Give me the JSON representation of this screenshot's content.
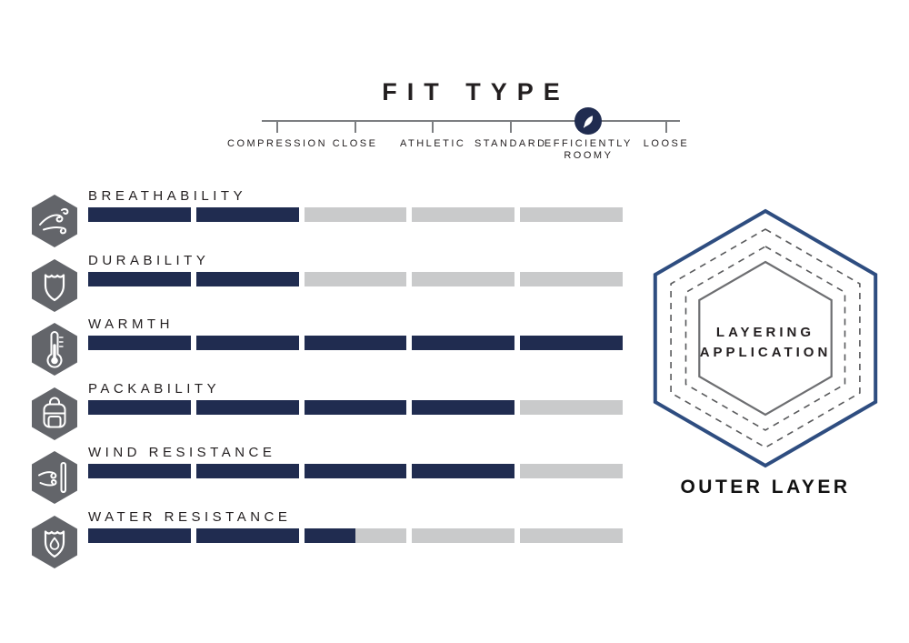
{
  "fit_type": {
    "title": "FIT TYPE",
    "options": [
      "COMPRESSION",
      "CLOSE",
      "ATHLETIC",
      "STANDARD",
      "EFFICIENTLY ROOMY",
      "LOOSE"
    ],
    "selected": "EFFICIENTLY ROOMY",
    "marker_icon": "feather-icon"
  },
  "attributes": [
    {
      "label": "BREATHABILITY",
      "icon": "breathability-wind-icon",
      "value": 2,
      "max": 5
    },
    {
      "label": "DURABILITY",
      "icon": "durability-shield-icon",
      "value": 2,
      "max": 5
    },
    {
      "label": "WARMTH",
      "icon": "warmth-thermometer-icon",
      "value": 5,
      "max": 5
    },
    {
      "label": "PACKABILITY",
      "icon": "packability-backpack-icon",
      "value": 4,
      "max": 5
    },
    {
      "label": "WIND RESISTANCE",
      "icon": "wind-resistance-icon",
      "value": 4,
      "max": 5
    },
    {
      "label": "WATER RESISTANCE",
      "icon": "water-resistance-shield-drop-icon",
      "value": 2.5,
      "max": 5
    }
  ],
  "layering": {
    "center_label_line1": "LAYERING",
    "center_label_line2": "APPLICATION",
    "caption": "OUTER LAYER"
  },
  "colors": {
    "navy": "#202c50",
    "bar_gray": "#c9cacb",
    "icon_gray": "#63656a",
    "line_gray": "#7c7e81",
    "text": "#231f20",
    "hex_blue": "#2e4d80",
    "hex_dash_gray": "#58595b",
    "hex_inner_gray": "#6d6e71"
  },
  "chart_data": {
    "type": "bar",
    "categories": [
      "BREATHABILITY",
      "DURABILITY",
      "WARMTH",
      "PACKABILITY",
      "WIND RESISTANCE",
      "WATER RESISTANCE"
    ],
    "values": [
      2,
      2,
      5,
      4,
      4,
      2.5
    ],
    "value_max": 5,
    "segments_per_bar": 5,
    "title": "FIT TYPE",
    "fit_scale": {
      "labels": [
        "COMPRESSION",
        "CLOSE",
        "ATHLETIC",
        "STANDARD",
        "EFFICIENTLY ROOMY",
        "LOOSE"
      ],
      "selected": "EFFICIENTLY ROOMY"
    },
    "layering_application": "OUTER LAYER",
    "legend_position": "none",
    "grid": false
  }
}
